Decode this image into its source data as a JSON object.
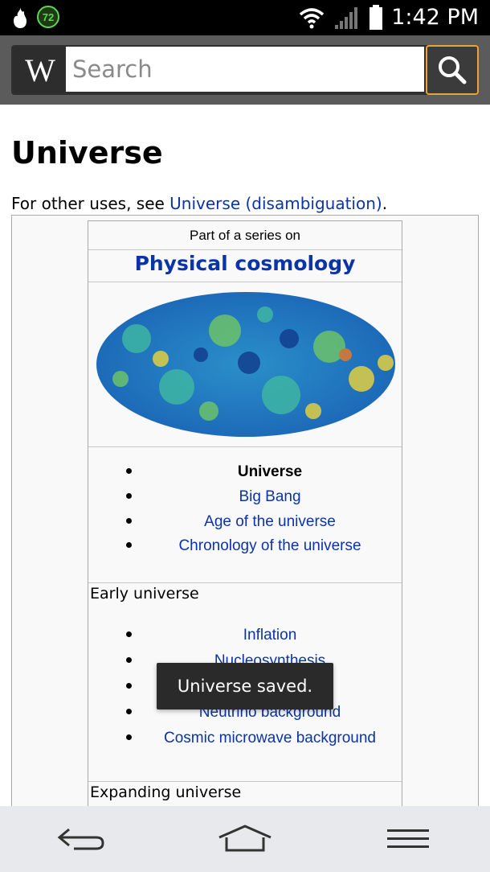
{
  "status_bar": {
    "time": "1:42 PM",
    "notification_badge": "72",
    "icons": [
      "flame-icon",
      "battery-badge-icon",
      "wifi-icon",
      "signal-icon",
      "battery-icon"
    ]
  },
  "header": {
    "logo_text": "W",
    "search_placeholder": "Search"
  },
  "article": {
    "title": "Universe",
    "hatnote_prefix": "For other uses, see ",
    "hatnote_link": "Universe (disambiguation)",
    "hatnote_suffix": "."
  },
  "infobox": {
    "series_label": "Part of a series on",
    "heading": "Physical cosmology",
    "image_alt": "Cosmic microwave background map",
    "list1": [
      {
        "label": "Universe",
        "bold": true
      },
      {
        "label": "Big Bang"
      },
      {
        "label": "Age of the universe"
      },
      {
        "label": "Chronology of the universe"
      }
    ],
    "early_universe": {
      "title": "Early universe",
      "items": [
        {
          "label": "Inflation"
        },
        {
          "label": "Nucleosynthesis"
        },
        {
          "label": ""
        },
        {
          "label": "Neutrino background"
        },
        {
          "label": "Cosmic microwave background"
        }
      ]
    },
    "expanding_universe": {
      "title": "Expanding universe"
    }
  },
  "toast": {
    "message": "Universe saved."
  },
  "colors": {
    "link": "#0b34a8",
    "header_bg": "#5b5b5b",
    "accent": "#e8a33a"
  }
}
